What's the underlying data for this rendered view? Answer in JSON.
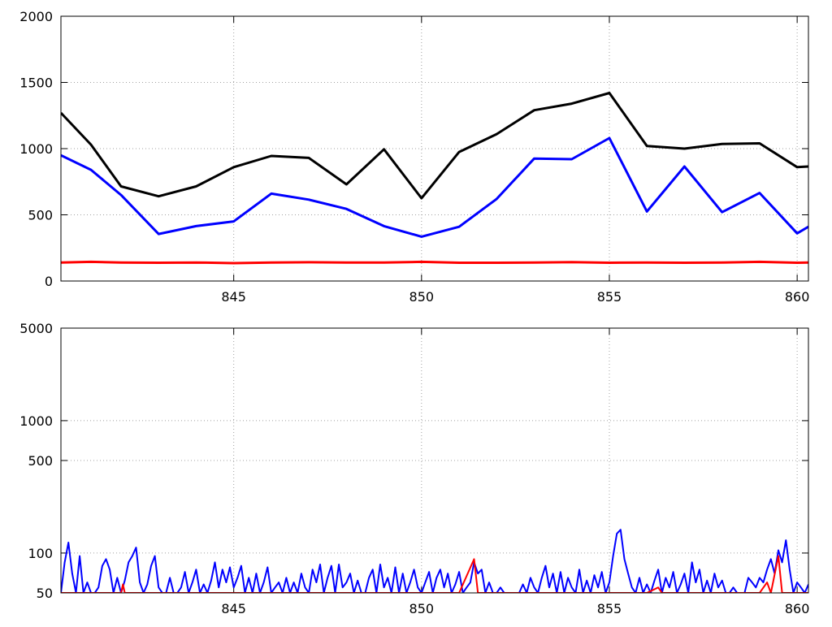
{
  "chart_data": [
    {
      "type": "line",
      "title": "",
      "xlabel": "",
      "ylabel": "",
      "xlim": [
        840.4,
        860.3
      ],
      "ylim": [
        0,
        2000
      ],
      "yscale": "linear",
      "grid": true,
      "x_ticks": [
        845,
        850,
        855,
        860
      ],
      "y_ticks": [
        0,
        500,
        1000,
        1500,
        2000
      ],
      "x": [
        840.4,
        841.2,
        842,
        843,
        844,
        845,
        846,
        847,
        848,
        849,
        850,
        851,
        852,
        853,
        854,
        855,
        856,
        857,
        858,
        859,
        860,
        860.3
      ],
      "series": [
        {
          "color": "#000000",
          "values": [
            1270,
            1030,
            715,
            640,
            715,
            860,
            945,
            930,
            730,
            995,
            625,
            975,
            1110,
            1290,
            1340,
            1420,
            1020,
            1000,
            1035,
            1040,
            860,
            865
          ]
        },
        {
          "color": "#0000ff",
          "values": [
            950,
            840,
            650,
            355,
            415,
            450,
            660,
            615,
            545,
            415,
            335,
            410,
            620,
            925,
            920,
            1080,
            525,
            865,
            520,
            665,
            360,
            410
          ]
        },
        {
          "color": "#ff0000",
          "values": [
            140,
            145,
            140,
            138,
            140,
            135,
            140,
            142,
            140,
            140,
            145,
            138,
            138,
            140,
            143,
            138,
            140,
            138,
            140,
            145,
            138,
            140
          ]
        }
      ]
    },
    {
      "type": "line",
      "title": "",
      "xlabel": "",
      "ylabel": "",
      "xlim": [
        840.4,
        860.3
      ],
      "ylim": [
        50,
        5000
      ],
      "yscale": "log",
      "grid": true,
      "x_ticks": [
        845,
        850,
        855,
        860
      ],
      "y_ticks": [
        50,
        100,
        500,
        1000,
        5000
      ],
      "series": [
        {
          "color": "#0000ff",
          "points": [
            [
              840.4,
              50
            ],
            [
              840.5,
              85
            ],
            [
              840.6,
              120
            ],
            [
              840.7,
              70
            ],
            [
              840.8,
              50
            ],
            [
              840.9,
              95
            ],
            [
              841.0,
              50
            ],
            [
              841.1,
              60
            ],
            [
              841.2,
              50
            ],
            [
              841.3,
              50
            ],
            [
              841.4,
              55
            ],
            [
              841.5,
              80
            ],
            [
              841.6,
              90
            ],
            [
              841.7,
              75
            ],
            [
              841.8,
              50
            ],
            [
              841.9,
              65
            ],
            [
              842.0,
              50
            ],
            [
              842.1,
              62
            ],
            [
              842.2,
              85
            ],
            [
              842.3,
              95
            ],
            [
              842.4,
              110
            ],
            [
              842.5,
              60
            ],
            [
              842.6,
              50
            ],
            [
              842.7,
              58
            ],
            [
              842.8,
              80
            ],
            [
              842.9,
              95
            ],
            [
              843.0,
              55
            ],
            [
              843.1,
              50
            ],
            [
              843.2,
              50
            ],
            [
              843.3,
              65
            ],
            [
              843.4,
              50
            ],
            [
              843.5,
              50
            ],
            [
              843.6,
              55
            ],
            [
              843.7,
              72
            ],
            [
              843.8,
              50
            ],
            [
              843.9,
              60
            ],
            [
              844.0,
              75
            ],
            [
              844.1,
              50
            ],
            [
              844.2,
              58
            ],
            [
              844.3,
              50
            ],
            [
              844.4,
              62
            ],
            [
              844.5,
              85
            ],
            [
              844.6,
              55
            ],
            [
              844.7,
              75
            ],
            [
              844.8,
              60
            ],
            [
              844.9,
              78
            ],
            [
              845.0,
              55
            ],
            [
              845.1,
              65
            ],
            [
              845.2,
              80
            ],
            [
              845.3,
              50
            ],
            [
              845.4,
              65
            ],
            [
              845.5,
              50
            ],
            [
              845.6,
              70
            ],
            [
              845.7,
              50
            ],
            [
              845.8,
              60
            ],
            [
              845.9,
              78
            ],
            [
              846.0,
              50
            ],
            [
              846.1,
              55
            ],
            [
              846.2,
              60
            ],
            [
              846.3,
              50
            ],
            [
              846.4,
              65
            ],
            [
              846.5,
              50
            ],
            [
              846.6,
              60
            ],
            [
              846.7,
              50
            ],
            [
              846.8,
              70
            ],
            [
              846.9,
              55
            ],
            [
              847.0,
              50
            ],
            [
              847.1,
              75
            ],
            [
              847.2,
              60
            ],
            [
              847.3,
              82
            ],
            [
              847.4,
              50
            ],
            [
              847.5,
              65
            ],
            [
              847.6,
              80
            ],
            [
              847.7,
              50
            ],
            [
              847.8,
              82
            ],
            [
              847.9,
              55
            ],
            [
              848.0,
              60
            ],
            [
              848.1,
              70
            ],
            [
              848.2,
              50
            ],
            [
              848.3,
              62
            ],
            [
              848.4,
              50
            ],
            [
              848.5,
              50
            ],
            [
              848.6,
              65
            ],
            [
              848.7,
              75
            ],
            [
              848.8,
              50
            ],
            [
              848.9,
              82
            ],
            [
              849.0,
              55
            ],
            [
              849.1,
              65
            ],
            [
              849.2,
              50
            ],
            [
              849.3,
              78
            ],
            [
              849.4,
              50
            ],
            [
              849.5,
              70
            ],
            [
              849.6,
              50
            ],
            [
              849.7,
              60
            ],
            [
              849.8,
              75
            ],
            [
              849.9,
              55
            ],
            [
              850.0,
              50
            ],
            [
              850.1,
              60
            ],
            [
              850.2,
              72
            ],
            [
              850.3,
              50
            ],
            [
              850.4,
              65
            ],
            [
              850.5,
              75
            ],
            [
              850.6,
              55
            ],
            [
              850.7,
              70
            ],
            [
              850.8,
              50
            ],
            [
              850.9,
              58
            ],
            [
              851.0,
              72
            ],
            [
              851.1,
              50
            ],
            [
              851.2,
              55
            ],
            [
              851.3,
              60
            ],
            [
              851.4,
              85
            ],
            [
              851.5,
              70
            ],
            [
              851.6,
              75
            ],
            [
              851.7,
              50
            ],
            [
              851.8,
              60
            ],
            [
              851.9,
              50
            ],
            [
              852.0,
              50
            ],
            [
              852.1,
              55
            ],
            [
              852.2,
              50
            ],
            [
              852.3,
              50
            ],
            [
              852.4,
              50
            ],
            [
              852.5,
              50
            ],
            [
              852.6,
              50
            ],
            [
              852.7,
              58
            ],
            [
              852.8,
              50
            ],
            [
              852.9,
              65
            ],
            [
              853.0,
              55
            ],
            [
              853.1,
              50
            ],
            [
              853.2,
              65
            ],
            [
              853.3,
              80
            ],
            [
              853.4,
              55
            ],
            [
              853.5,
              70
            ],
            [
              853.6,
              50
            ],
            [
              853.7,
              72
            ],
            [
              853.8,
              50
            ],
            [
              853.9,
              65
            ],
            [
              854.0,
              55
            ],
            [
              854.1,
              50
            ],
            [
              854.2,
              75
            ],
            [
              854.3,
              50
            ],
            [
              854.4,
              62
            ],
            [
              854.5,
              50
            ],
            [
              854.6,
              68
            ],
            [
              854.7,
              55
            ],
            [
              854.8,
              72
            ],
            [
              854.9,
              50
            ],
            [
              855.0,
              60
            ],
            [
              855.1,
              95
            ],
            [
              855.2,
              140
            ],
            [
              855.3,
              150
            ],
            [
              855.4,
              90
            ],
            [
              855.5,
              70
            ],
            [
              855.6,
              55
            ],
            [
              855.7,
              50
            ],
            [
              855.8,
              65
            ],
            [
              855.9,
              50
            ],
            [
              856.0,
              58
            ],
            [
              856.1,
              50
            ],
            [
              856.2,
              62
            ],
            [
              856.3,
              75
            ],
            [
              856.4,
              50
            ],
            [
              856.5,
              65
            ],
            [
              856.6,
              55
            ],
            [
              856.7,
              72
            ],
            [
              856.8,
              50
            ],
            [
              856.9,
              58
            ],
            [
              857.0,
              70
            ],
            [
              857.1,
              50
            ],
            [
              857.2,
              85
            ],
            [
              857.3,
              60
            ],
            [
              857.4,
              75
            ],
            [
              857.5,
              50
            ],
            [
              857.6,
              62
            ],
            [
              857.7,
              50
            ],
            [
              857.8,
              70
            ],
            [
              857.9,
              55
            ],
            [
              858.0,
              62
            ],
            [
              858.1,
              50
            ],
            [
              858.2,
              50
            ],
            [
              858.3,
              55
            ],
            [
              858.4,
              50
            ],
            [
              858.5,
              50
            ],
            [
              858.6,
              50
            ],
            [
              858.7,
              65
            ],
            [
              858.8,
              60
            ],
            [
              858.9,
              55
            ],
            [
              859.0,
              65
            ],
            [
              859.1,
              60
            ],
            [
              859.2,
              75
            ],
            [
              859.3,
              90
            ],
            [
              859.4,
              70
            ],
            [
              859.5,
              105
            ],
            [
              859.6,
              85
            ],
            [
              859.7,
              125
            ],
            [
              859.8,
              75
            ],
            [
              859.9,
              50
            ],
            [
              860.0,
              60
            ],
            [
              860.1,
              55
            ],
            [
              860.2,
              50
            ],
            [
              860.3,
              58
            ]
          ]
        },
        {
          "color": "#ff0000",
          "points": [
            [
              840.4,
              50
            ],
            [
              840.6,
              50
            ],
            [
              840.8,
              50
            ],
            [
              841.0,
              50
            ],
            [
              841.5,
              50
            ],
            [
              842.0,
              50
            ],
            [
              842.05,
              58
            ],
            [
              842.1,
              50
            ],
            [
              842.6,
              50
            ],
            [
              843.0,
              50
            ],
            [
              844.0,
              50
            ],
            [
              845.0,
              50
            ],
            [
              846.0,
              50
            ],
            [
              847.0,
              50
            ],
            [
              847.6,
              50
            ],
            [
              848.0,
              50
            ],
            [
              849.0,
              50
            ],
            [
              850.0,
              50
            ],
            [
              851.0,
              50
            ],
            [
              851.4,
              90
            ],
            [
              851.5,
              50
            ],
            [
              852.0,
              50
            ],
            [
              853.0,
              50
            ],
            [
              854.0,
              50
            ],
            [
              855.0,
              50
            ],
            [
              856.0,
              50
            ],
            [
              856.3,
              55
            ],
            [
              856.4,
              50
            ],
            [
              857.0,
              50
            ],
            [
              858.0,
              50
            ],
            [
              859.0,
              50
            ],
            [
              859.2,
              60
            ],
            [
              859.3,
              50
            ],
            [
              859.5,
              95
            ],
            [
              859.6,
              50
            ],
            [
              860.0,
              50
            ],
            [
              860.3,
              50
            ]
          ]
        }
      ]
    }
  ]
}
